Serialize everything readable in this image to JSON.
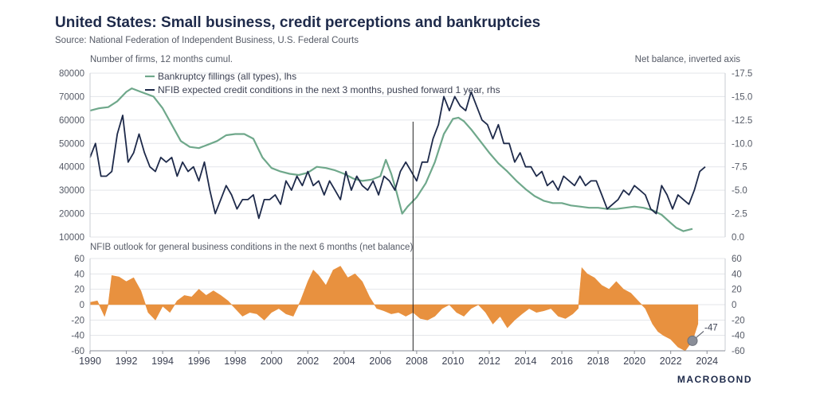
{
  "header": {
    "title": "United States: Small business, credit perceptions and bankruptcies",
    "source": "Source: National Federation of Independent Business, U.S. Federal Courts"
  },
  "brand": {
    "logo": "MACROBOND"
  },
  "colors": {
    "bankruptcy": "#6fa88b",
    "nfib_credit": "#1e2a4a",
    "outlook": "#e8913f",
    "marker": "#8a8e98"
  },
  "chart_data": [
    {
      "type": "line",
      "title": "",
      "ylabel_left": "Number of firms, 12 months cumul.",
      "ylabel_right": "Net balance, inverted axis",
      "xlim": [
        1990,
        2025
      ],
      "ylim_left": [
        10000,
        80000
      ],
      "ylim_right": [
        0,
        -17.5
      ],
      "y_ticks_left": [
        "80000",
        "70000",
        "60000",
        "50000",
        "40000",
        "30000",
        "20000",
        "10000"
      ],
      "y_ticks_right": [
        "-17.5",
        "-15.0",
        "-12.5",
        "-10.0",
        "-7.5",
        "-5.0",
        "-2.5",
        "0.0"
      ],
      "legend": [
        "Bankruptcy fillings (all types), lhs",
        "NFIB expected credit conditions in the next 3 months, pushed forward 1 year, rhs"
      ],
      "legend_position": "top-left",
      "grid": true,
      "vertical_marker_x": 2007.8,
      "series": [
        {
          "name": "Bankruptcy fillings (all types), lhs",
          "axis": "left",
          "x": [
            1990,
            1990.5,
            1991,
            1991.5,
            1992,
            1992.3,
            1992.8,
            1993.5,
            1994,
            1994.5,
            1995,
            1995.5,
            1996,
            1996.5,
            1997,
            1997.5,
            1998,
            1998.5,
            1999,
            1999.5,
            2000,
            2000.5,
            2001,
            2001.5,
            2002,
            2002.5,
            2003,
            2003.5,
            2004,
            2004.5,
            2005,
            2005.5,
            2006,
            2006.3,
            2006.6,
            2006.9,
            2007.2,
            2007.5,
            2008,
            2008.5,
            2009,
            2009.5,
            2010,
            2010.3,
            2010.6,
            2011,
            2011.5,
            2012,
            2012.5,
            2013,
            2013.5,
            2014,
            2014.5,
            2015,
            2015.5,
            2016,
            2016.5,
            2017,
            2017.5,
            2018,
            2018.5,
            2019,
            2019.5,
            2020,
            2020.5,
            2021,
            2021.5,
            2022,
            2022.3,
            2022.7,
            2023.2
          ],
          "y": [
            64000,
            65000,
            65500,
            68000,
            72000,
            73500,
            72000,
            70000,
            65000,
            58000,
            51000,
            48500,
            48000,
            49500,
            51000,
            53500,
            54000,
            54000,
            52000,
            44000,
            39500,
            38000,
            37000,
            36500,
            37500,
            40000,
            39500,
            38500,
            37000,
            35000,
            34000,
            34500,
            36000,
            43000,
            37000,
            29000,
            20000,
            23000,
            27000,
            33000,
            42000,
            54000,
            60500,
            61000,
            59500,
            56000,
            51000,
            46000,
            41500,
            38000,
            34000,
            30500,
            27500,
            25500,
            24500,
            24500,
            23500,
            23000,
            22500,
            22500,
            22000,
            22000,
            22500,
            23000,
            22500,
            21500,
            19500,
            16000,
            14000,
            12500,
            13500
          ]
        },
        {
          "name": "NFIB expected credit conditions in the next 3 months, pushed forward 1 year, rhs",
          "axis": "right",
          "x": [
            1990,
            1990.3,
            1990.6,
            1990.9,
            1991.2,
            1991.5,
            1991.8,
            1992.1,
            1992.4,
            1992.7,
            1993,
            1993.3,
            1993.6,
            1993.9,
            1994.2,
            1994.5,
            1994.8,
            1995.1,
            1995.4,
            1995.7,
            1996,
            1996.3,
            1996.6,
            1996.9,
            1997.2,
            1997.5,
            1997.8,
            1998.1,
            1998.4,
            1998.7,
            1999,
            1999.3,
            1999.6,
            1999.9,
            2000.2,
            2000.5,
            2000.8,
            2001.1,
            2001.4,
            2001.7,
            2002,
            2002.3,
            2002.6,
            2002.9,
            2003.2,
            2003.5,
            2003.8,
            2004.1,
            2004.4,
            2004.7,
            2005,
            2005.3,
            2005.6,
            2005.9,
            2006.2,
            2006.5,
            2006.8,
            2007.1,
            2007.4,
            2007.7,
            2008,
            2008.3,
            2008.6,
            2008.9,
            2009.2,
            2009.5,
            2009.8,
            2010.1,
            2010.4,
            2010.7,
            2011,
            2011.3,
            2011.6,
            2011.9,
            2012.2,
            2012.5,
            2012.8,
            2013.1,
            2013.4,
            2013.7,
            2014,
            2014.3,
            2014.6,
            2014.9,
            2015.2,
            2015.5,
            2015.8,
            2016.1,
            2016.4,
            2016.7,
            2017,
            2017.3,
            2017.6,
            2017.9,
            2018.2,
            2018.5,
            2018.8,
            2019.1,
            2019.4,
            2019.7,
            2020,
            2020.3,
            2020.6,
            2020.9,
            2021.2,
            2021.5,
            2021.8,
            2022.1,
            2022.4,
            2022.7,
            2023,
            2023.3,
            2023.6,
            2023.9
          ],
          "y": [
            -8.5,
            -10,
            -6.5,
            -6.5,
            -7,
            -11,
            -13,
            -8,
            -9,
            -11,
            -9,
            -7.5,
            -7,
            -8.5,
            -8,
            -8.5,
            -6.5,
            -8,
            -7,
            -7.5,
            -6,
            -8,
            -5,
            -2.5,
            -4,
            -5.5,
            -4.5,
            -3,
            -4,
            -4,
            -4.5,
            -2,
            -4,
            -4,
            -4.5,
            -3.5,
            -6,
            -5,
            -6.5,
            -5.5,
            -7,
            -5.5,
            -6,
            -4.5,
            -6,
            -5,
            -4,
            -7,
            -5,
            -6.5,
            -5.5,
            -5,
            -6,
            -4.5,
            -6.5,
            -6,
            -5,
            -7,
            -8,
            -7,
            -6,
            -8,
            -8,
            -10.5,
            -12,
            -15,
            -13.5,
            -15,
            -14,
            -13.5,
            -15.5,
            -14,
            -12.5,
            -12,
            -10.5,
            -12,
            -10,
            -10,
            -8,
            -9,
            -7.5,
            -7.5,
            -6.5,
            -7,
            -5.5,
            -6,
            -5,
            -6.5,
            -6,
            -5.5,
            -6.5,
            -5.5,
            -6,
            -6,
            -4.5,
            -3,
            -3.5,
            -4,
            -5,
            -4.5,
            -5.5,
            -5,
            -4.5,
            -3,
            -2.5,
            -5.5,
            -4.5,
            -3,
            -4.5,
            -4,
            -3.5,
            -5,
            -7,
            -7.5
          ]
        }
      ]
    },
    {
      "type": "area",
      "title": "NFIB outlook for general business conditions in the next 6 months (net balance)",
      "xlabel": "",
      "ylim": [
        -60,
        60
      ],
      "y_ticks": [
        "60",
        "40",
        "20",
        "0",
        "-20",
        "-40",
        "-60"
      ],
      "x_ticks": [
        "1990",
        "1992",
        "1994",
        "1996",
        "1998",
        "2000",
        "2002",
        "2004",
        "2006",
        "2008",
        "2010",
        "2012",
        "2014",
        "2016",
        "2018",
        "2020",
        "2022",
        "2024"
      ],
      "grid": true,
      "annotation": {
        "x": 2023.2,
        "y": -47,
        "text": "-47"
      },
      "series": [
        {
          "name": "",
          "x": [
            1990,
            1990.4,
            1990.8,
            1991,
            1991.2,
            1991.6,
            1992,
            1992.4,
            1992.8,
            1993.2,
            1993.6,
            1994,
            1994.4,
            1994.8,
            1995.2,
            1995.6,
            1996,
            1996.4,
            1996.8,
            1997.2,
            1997.6,
            1998,
            1998.4,
            1998.8,
            1999.2,
            1999.6,
            2000,
            2000.4,
            2000.8,
            2001.2,
            2001.6,
            2002,
            2002.3,
            2002.6,
            2003,
            2003.4,
            2003.8,
            2004.2,
            2004.6,
            2005,
            2005.4,
            2005.8,
            2006.2,
            2006.6,
            2007,
            2007.4,
            2007.8,
            2008.2,
            2008.6,
            2009,
            2009.4,
            2009.8,
            2010.2,
            2010.6,
            2011,
            2011.4,
            2011.8,
            2012.2,
            2012.6,
            2013,
            2013.4,
            2013.8,
            2014.2,
            2014.6,
            2015,
            2015.4,
            2015.8,
            2016.2,
            2016.6,
            2016.9,
            2017.1,
            2017.4,
            2017.8,
            2018.2,
            2018.6,
            2019,
            2019.4,
            2019.8,
            2020.2,
            2020.6,
            2021,
            2021.3,
            2021.6,
            2022,
            2022.4,
            2022.8,
            2023.2,
            2023.5
          ],
          "y": [
            3,
            5,
            -15,
            0,
            38,
            36,
            30,
            35,
            18,
            -10,
            -20,
            -2,
            -10,
            5,
            12,
            10,
            20,
            12,
            18,
            12,
            5,
            -5,
            -15,
            -10,
            -12,
            -20,
            -10,
            -5,
            -12,
            -15,
            5,
            30,
            45,
            38,
            25,
            45,
            50,
            35,
            40,
            30,
            10,
            -5,
            -8,
            -12,
            -10,
            -15,
            -10,
            -18,
            -20,
            -15,
            -5,
            0,
            -10,
            -15,
            -5,
            0,
            -10,
            -25,
            -15,
            -30,
            -20,
            -12,
            -5,
            -10,
            -8,
            -5,
            -15,
            -18,
            -12,
            -5,
            48,
            40,
            35,
            25,
            20,
            30,
            20,
            15,
            5,
            -5,
            -25,
            -35,
            -40,
            -45,
            -55,
            -60,
            -47,
            -25
          ]
        }
      ]
    }
  ]
}
